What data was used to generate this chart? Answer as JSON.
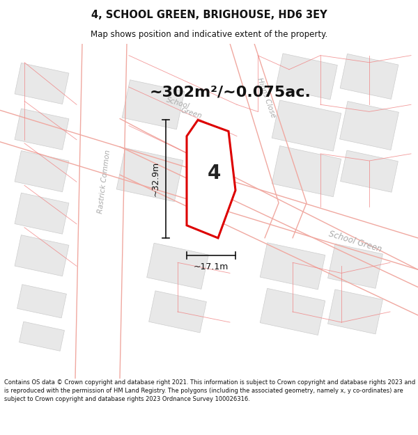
{
  "title": "4, SCHOOL GREEN, BRIGHOUSE, HD6 3EY",
  "subtitle": "Map shows position and indicative extent of the property.",
  "footer": "Contains OS data © Crown copyright and database right 2021. This information is subject to Crown copyright and database rights 2023 and is reproduced with the permission of HM Land Registry. The polygons (including the associated geometry, namely x, y co-ordinates) are subject to Crown copyright and database rights 2023 Ordnance Survey 100026316.",
  "area_text": "~302m²/~0.075ac.",
  "dimension1": "~32.9m",
  "dimension2": "~17.1m",
  "plot_label": "4",
  "bg_color": "#ffffff",
  "map_bg": "#ffffff",
  "building_color": "#e8e8e8",
  "building_outline": "#cccccc",
  "plot_fill": "#ffffff",
  "plot_outline": "#dd0000",
  "road_line_color": "#f0a8a0",
  "road_label_color": "#aaaaaa",
  "dim_line_color": "#111111",
  "area_text_color": "#111111"
}
